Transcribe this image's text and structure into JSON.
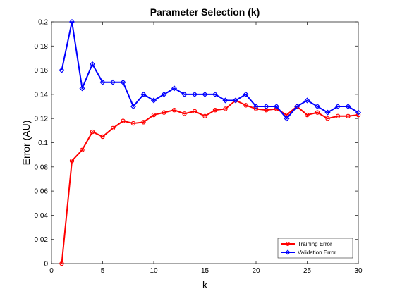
{
  "chart_data": {
    "type": "line",
    "title": "Parameter Selection (k)",
    "xlabel": "k",
    "ylabel": "Error (AU)",
    "xlim": [
      0,
      30
    ],
    "ylim": [
      0,
      0.2
    ],
    "xticks": [
      0,
      5,
      10,
      15,
      20,
      25,
      30
    ],
    "yticks": [
      0,
      0.02,
      0.04,
      0.06,
      0.08,
      0.1,
      0.12,
      0.14,
      0.16,
      0.18,
      0.2
    ],
    "grid": false,
    "legend_position": "bottom-right",
    "x": [
      1,
      2,
      3,
      4,
      5,
      6,
      7,
      8,
      9,
      10,
      11,
      12,
      13,
      14,
      15,
      16,
      17,
      18,
      19,
      20,
      21,
      22,
      23,
      24,
      25,
      26,
      27,
      28,
      29,
      30
    ],
    "series": [
      {
        "name": "Training Error",
        "color": "#ff0000",
        "marker": "circle",
        "values": [
          0,
          0.085,
          0.094,
          0.109,
          0.105,
          0.112,
          0.118,
          0.116,
          0.117,
          0.123,
          0.125,
          0.127,
          0.124,
          0.126,
          0.122,
          0.127,
          0.128,
          0.135,
          0.131,
          0.128,
          0.127,
          0.128,
          0.123,
          0.13,
          0.123,
          0.125,
          0.12,
          0.122,
          0.122,
          0.123
        ]
      },
      {
        "name": "Validation Error",
        "color": "#0000ff",
        "marker": "diamond",
        "values": [
          0.16,
          0.2,
          0.145,
          0.165,
          0.15,
          0.15,
          0.15,
          0.13,
          0.14,
          0.135,
          0.14,
          0.145,
          0.14,
          0.14,
          0.14,
          0.14,
          0.135,
          0.135,
          0.14,
          0.13,
          0.13,
          0.13,
          0.12,
          0.13,
          0.135,
          0.13,
          0.125,
          0.13,
          0.13,
          0.125
        ]
      }
    ]
  }
}
